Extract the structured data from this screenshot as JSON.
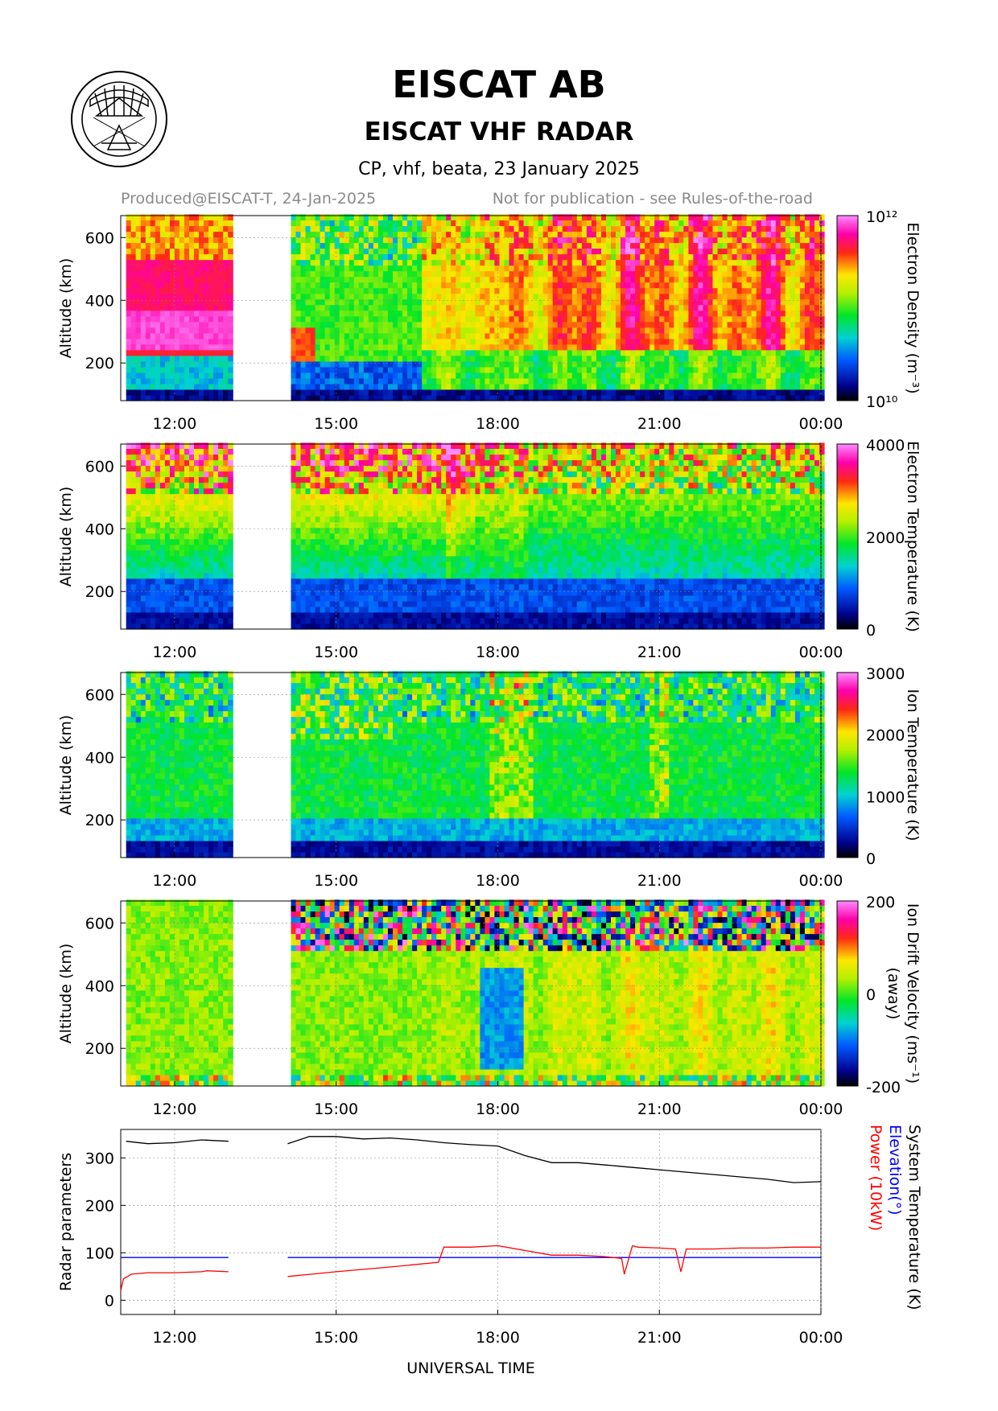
{
  "header": {
    "title": "EISCAT AB",
    "subtitle": "EISCAT VHF RADAR",
    "run_info": "CP, vhf, beata, 23 January 2025",
    "produced": "Produced@EISCAT-T, 24-Jan-2025",
    "notice": "Not for publication - see Rules-of-the-road"
  },
  "x_axis": {
    "label": "UNIVERSAL TIME",
    "ticks": [
      "12:00",
      "15:00",
      "18:00",
      "21:00",
      "00:00"
    ],
    "tick_hours": [
      12,
      15,
      18,
      21,
      24
    ],
    "range_hours": [
      11.0,
      24.0
    ],
    "data_gap_hours": [
      13.0,
      14.1
    ]
  },
  "chart_data": [
    {
      "type": "heatmap",
      "id": "electron-density",
      "ylabel": "Altitude (km)",
      "yticks": [
        200,
        400,
        600
      ],
      "ylim": [
        80,
        670
      ],
      "colorbar_label": "Electron Density (m⁻³)",
      "colorbar_ticks": [
        "10¹²",
        "10¹⁰"
      ],
      "colorbar_scale": "log",
      "colorbar_range": [
        10000000000.0,
        1000000000000.0
      ]
    },
    {
      "type": "heatmap",
      "id": "electron-temperature",
      "ylabel": "Altitude (km)",
      "yticks": [
        200,
        400,
        600
      ],
      "ylim": [
        80,
        670
      ],
      "colorbar_label": "Electron Temperature (K)",
      "colorbar_ticks": [
        "4000",
        "2000",
        "0"
      ],
      "colorbar_range": [
        0,
        4000
      ]
    },
    {
      "type": "heatmap",
      "id": "ion-temperature",
      "ylabel": "Altitude (km)",
      "yticks": [
        200,
        400,
        600
      ],
      "ylim": [
        80,
        670
      ],
      "colorbar_label": "Ion Temperature (K)",
      "colorbar_ticks": [
        "3000",
        "2000",
        "1000",
        "0"
      ],
      "colorbar_range": [
        0,
        3000
      ]
    },
    {
      "type": "heatmap",
      "id": "ion-drift-velocity",
      "ylabel": "Altitude (km)",
      "yticks": [
        200,
        400,
        600
      ],
      "ylim": [
        80,
        670
      ],
      "colorbar_label": "Ion Drift Velocity (ms⁻¹)",
      "colorbar_label2": "(away)",
      "colorbar_ticks": [
        "200",
        "0",
        "-200"
      ],
      "colorbar_range": [
        -200,
        200
      ]
    },
    {
      "type": "line",
      "id": "radar-parameters",
      "ylabel": "Radar parameters",
      "yticks": [
        0,
        100,
        200,
        300
      ],
      "ylim": [
        -30,
        360
      ],
      "legend": [
        {
          "name": "System Temperature (K)",
          "color": "#000000"
        },
        {
          "name": "Elevation(°)",
          "color": "#0000ff"
        },
        {
          "name": "Power (10kW)",
          "color": "#ff0000"
        }
      ],
      "series": [
        {
          "name": "System Temperature (K)",
          "color": "#000000",
          "segments": [
            {
              "x": [
                11.1,
                11.5,
                12.0,
                12.5,
                13.0
              ],
              "y": [
                335,
                330,
                332,
                338,
                335
              ]
            },
            {
              "x": [
                14.1,
                14.5,
                15.0,
                15.5,
                16.0,
                16.5,
                17.0,
                17.5,
                18.0,
                18.5,
                19.0,
                19.5,
                20.0,
                20.5,
                21.0,
                21.5,
                22.0,
                22.5,
                23.0,
                23.5,
                24.0
              ],
              "y": [
                330,
                345,
                345,
                340,
                342,
                338,
                332,
                328,
                325,
                305,
                290,
                290,
                285,
                280,
                275,
                270,
                265,
                260,
                255,
                248,
                250
              ]
            }
          ]
        },
        {
          "name": "Elevation(°)",
          "color": "#0000ff",
          "segments": [
            {
              "x": [
                11.0,
                13.0
              ],
              "y": [
                90,
                90
              ]
            },
            {
              "x": [
                14.1,
                24.0
              ],
              "y": [
                90,
                90
              ]
            }
          ]
        },
        {
          "name": "Power (10kW)",
          "color": "#ff0000",
          "segments": [
            {
              "x": [
                11.0,
                11.05,
                11.2,
                11.5,
                12.0,
                12.5,
                12.6,
                13.0
              ],
              "y": [
                20,
                45,
                55,
                58,
                58,
                60,
                62,
                60
              ]
            },
            {
              "x": [
                14.1,
                15.0,
                16.0,
                16.9,
                17.0,
                17.5,
                18.0,
                18.5,
                19.0,
                19.5,
                20.0,
                20.3,
                20.35,
                20.5,
                20.6,
                21.0,
                21.3,
                21.4,
                21.5,
                22.0,
                22.5,
                23.0,
                23.5,
                24.0
              ],
              "y": [
                50,
                60,
                70,
                80,
                112,
                112,
                115,
                105,
                95,
                95,
                92,
                88,
                55,
                115,
                112,
                110,
                108,
                60,
                108,
                108,
                110,
                110,
                112,
                112
              ]
            }
          ]
        }
      ]
    }
  ]
}
